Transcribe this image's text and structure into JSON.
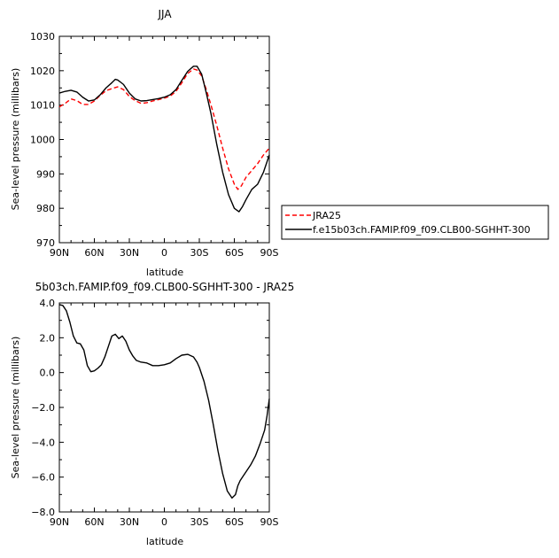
{
  "colors": {
    "model": "#000000",
    "obs": "#ff0000",
    "axis": "#000000"
  },
  "chart_data": [
    {
      "type": "line",
      "title": "JJA",
      "xlabel": "latitude",
      "ylabel": "Sea-level pressure (millibars)",
      "xlim": [
        -90,
        90
      ],
      "ylim": [
        970,
        1030
      ],
      "xticks": [
        -90,
        -60,
        -30,
        0,
        30,
        60,
        90
      ],
      "xtick_labels": [
        "90N",
        "60N",
        "30N",
        "0",
        "30S",
        "60S",
        "90S"
      ],
      "yticks": [
        970,
        980,
        990,
        1000,
        1010,
        1020,
        1030
      ],
      "ytick_labels": [
        "970",
        "980",
        "990",
        "1000",
        "1010",
        "1020",
        "1030"
      ],
      "legend": "outside-right",
      "series": [
        {
          "name": "JRA25",
          "style": "dashed",
          "x": [
            -90,
            -85,
            -80,
            -75,
            -70,
            -65,
            -60,
            -55,
            -50,
            -45,
            -40,
            -35,
            -30,
            -25,
            -20,
            -15,
            -10,
            -5,
            0,
            5,
            10,
            15,
            20,
            25,
            28,
            32,
            36,
            40,
            45,
            50,
            55,
            60,
            63,
            66,
            70,
            75,
            80,
            85,
            90
          ],
          "y": [
            1009.5,
            1010.5,
            1011.8,
            1011.3,
            1010.2,
            1010.2,
            1011.2,
            1012.8,
            1014.2,
            1014.8,
            1015.3,
            1014.5,
            1012.5,
            1011.3,
            1010.5,
            1010.7,
            1011.2,
            1011.6,
            1012.0,
            1012.6,
            1014.0,
            1016.5,
            1019.2,
            1020.5,
            1020.2,
            1018.5,
            1014.5,
            1010.0,
            1004.0,
            997.5,
            991.5,
            987.0,
            985.5,
            986.5,
            989.0,
            991.0,
            993.0,
            995.5,
            997.5
          ]
        },
        {
          "name": "f.e15b03ch.FAMIP.f09_f09.CLB00-SGHHT-300",
          "style": "solid",
          "x": [
            -90,
            -85,
            -80,
            -75,
            -70,
            -65,
            -60,
            -55,
            -50,
            -45,
            -42,
            -40,
            -38,
            -35,
            -30,
            -25,
            -20,
            -15,
            -10,
            -5,
            0,
            5,
            10,
            15,
            20,
            25,
            28,
            32,
            36,
            40,
            45,
            50,
            55,
            60,
            64,
            67,
            70,
            75,
            80,
            85,
            90
          ],
          "y": [
            1013.5,
            1014.0,
            1014.3,
            1013.8,
            1012.3,
            1011.2,
            1011.5,
            1013.0,
            1015.0,
            1016.5,
            1017.5,
            1017.3,
            1016.8,
            1016.0,
            1013.5,
            1011.8,
            1011.2,
            1011.3,
            1011.6,
            1011.9,
            1012.3,
            1013.0,
            1014.5,
            1017.2,
            1019.8,
            1021.3,
            1021.3,
            1019.0,
            1013.5,
            1007.5,
            998.5,
            990.5,
            984.0,
            980.0,
            979.0,
            980.5,
            982.5,
            985.5,
            987.0,
            990.5,
            995.5
          ]
        }
      ]
    },
    {
      "type": "line",
      "title": "5b03ch.FAMIP.f09_f09.CLB00-SGHHT-300 - JRA25",
      "xlabel": "latitude",
      "ylabel": "Sea-level pressure (millibars)",
      "xlim": [
        -90,
        90
      ],
      "ylim": [
        -8,
        4
      ],
      "xticks": [
        -90,
        -60,
        -30,
        0,
        30,
        60,
        90
      ],
      "xtick_labels": [
        "90N",
        "60N",
        "30N",
        "0",
        "30S",
        "60S",
        "90S"
      ],
      "yticks": [
        -8,
        -6,
        -4,
        -2,
        0,
        2,
        4
      ],
      "ytick_labels": [
        "−8.0",
        "−6.0",
        "−4.0",
        "−2.0",
        "0.0",
        "2.0",
        "4.0"
      ],
      "series": [
        {
          "style": "solid",
          "x": [
            -90,
            -87,
            -84,
            -81,
            -78,
            -75,
            -72,
            -69,
            -66,
            -63,
            -60,
            -57,
            -54,
            -51,
            -48,
            -45,
            -42,
            -39,
            -36,
            -33,
            -30,
            -27,
            -24,
            -20,
            -15,
            -10,
            -5,
            0,
            5,
            10,
            15,
            20,
            25,
            28,
            30,
            34,
            38,
            42,
            46,
            50,
            54,
            58,
            61,
            63,
            65,
            67,
            70,
            74,
            78,
            82,
            86,
            88,
            90
          ],
          "y": [
            3.9,
            3.85,
            3.55,
            2.9,
            2.1,
            1.7,
            1.65,
            1.3,
            0.4,
            0.05,
            0.1,
            0.25,
            0.45,
            0.9,
            1.5,
            2.1,
            2.2,
            1.95,
            2.1,
            1.8,
            1.3,
            0.95,
            0.7,
            0.6,
            0.55,
            0.4,
            0.4,
            0.45,
            0.55,
            0.8,
            1.0,
            1.05,
            0.9,
            0.6,
            0.3,
            -0.5,
            -1.6,
            -3.0,
            -4.5,
            -5.8,
            -6.8,
            -7.2,
            -7.0,
            -6.5,
            -6.2,
            -6.0,
            -5.7,
            -5.3,
            -4.8,
            -4.1,
            -3.3,
            -2.5,
            -1.5
          ]
        }
      ]
    }
  ]
}
